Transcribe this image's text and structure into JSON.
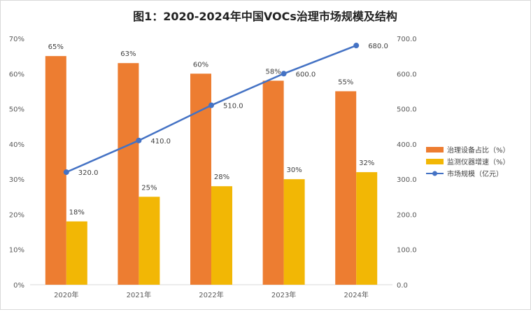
{
  "chart_data": {
    "type": "bar",
    "title": "图1：2020-2024年中国VOCs治理市场规模及结构",
    "categories": [
      "2020年",
      "2021年",
      "2022年",
      "2023年",
      "2024年"
    ],
    "series": [
      {
        "name": "治理设备占比（%）",
        "type": "bar",
        "axis": "left",
        "values": [
          65,
          63,
          60,
          58,
          55
        ],
        "labels": [
          "65%",
          "63%",
          "60%",
          "58%",
          "55%"
        ],
        "color": "#ED7D31"
      },
      {
        "name": "监测仪器增速（%）",
        "type": "bar",
        "axis": "left",
        "values": [
          18,
          25,
          28,
          30,
          32
        ],
        "labels": [
          "18%",
          "25%",
          "28%",
          "30%",
          "32%"
        ],
        "color": "#F2B705"
      },
      {
        "name": "市场规模（亿元）",
        "type": "line",
        "axis": "right",
        "values": [
          320,
          410,
          510,
          600,
          680
        ],
        "labels": [
          "320.0",
          "410.0",
          "510.0",
          "600.0",
          "680.0"
        ],
        "color": "#4472C4"
      }
    ],
    "left_axis": {
      "ylim": [
        0,
        70
      ],
      "ticks": [
        "0%",
        "10%",
        "20%",
        "30%",
        "40%",
        "50%",
        "60%",
        "70%"
      ]
    },
    "right_axis": {
      "ylim": [
        0,
        700
      ],
      "ticks": [
        "0.0",
        "100.0",
        "200.0",
        "300.0",
        "400.0",
        "500.0",
        "600.0",
        "700.0"
      ]
    },
    "grid": false,
    "legend_position": "right"
  }
}
